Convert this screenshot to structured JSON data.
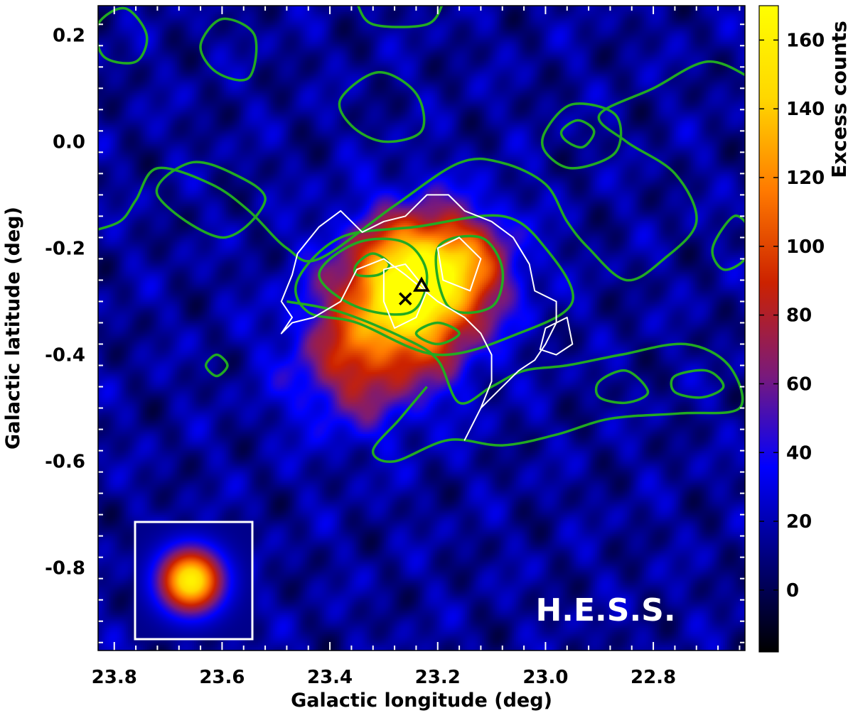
{
  "chart_data": {
    "type": "heatmap",
    "title": "",
    "watermark": "H.E.S.S.",
    "xlabel": "Galactic longitude (deg)",
    "ylabel": "Galactic latitude (deg)",
    "xlim": [
      23.83,
      22.63
    ],
    "ylim": [
      -0.955,
      0.255
    ],
    "x_ticks": [
      {
        "value": 23.8,
        "label": "23.8"
      },
      {
        "value": 23.6,
        "label": "23.6"
      },
      {
        "value": 23.4,
        "label": "23.4"
      },
      {
        "value": 23.2,
        "label": "23.2"
      },
      {
        "value": 23.0,
        "label": "23.0"
      },
      {
        "value": 22.8,
        "label": "22.8"
      }
    ],
    "y_ticks": [
      {
        "value": 0.2,
        "label": "0.2"
      },
      {
        "value": 0.0,
        "label": "0.0"
      },
      {
        "value": -0.2,
        "label": "-0.2"
      },
      {
        "value": -0.4,
        "label": "-0.4"
      },
      {
        "value": -0.6,
        "label": "-0.6"
      },
      {
        "value": -0.8,
        "label": "-0.8"
      }
    ],
    "colorbar": {
      "label": "Excess counts",
      "range": [
        -18,
        170
      ],
      "ticks": [
        {
          "value": 0,
          "label": "0"
        },
        {
          "value": 20,
          "label": "20"
        },
        {
          "value": 40,
          "label": "40"
        },
        {
          "value": 60,
          "label": "60"
        },
        {
          "value": 80,
          "label": "80"
        },
        {
          "value": 100,
          "label": "100"
        },
        {
          "value": 120,
          "label": "120"
        },
        {
          "value": 140,
          "label": "140"
        },
        {
          "value": 160,
          "label": "160"
        }
      ],
      "colormap": [
        "#000000",
        "#00007a",
        "#0000ff",
        "#7a1a7a",
        "#cc2200",
        "#ff7a00",
        "#ffd700",
        "#ffff00"
      ]
    },
    "excess_sources": [
      {
        "l": 23.24,
        "b": -0.26,
        "sigma": 0.085,
        "amplitude": 150
      },
      {
        "l": 23.31,
        "b": -0.37,
        "sigma": 0.1,
        "amplitude": 60
      },
      {
        "l": 23.14,
        "b": -0.22,
        "sigma": 0.07,
        "amplitude": 40
      },
      {
        "l": 23.38,
        "b": -0.44,
        "sigma": 0.07,
        "amplitude": 25
      }
    ],
    "markers": [
      {
        "type": "cross",
        "l": 23.26,
        "b": -0.295,
        "color": "#000000"
      },
      {
        "type": "triangle",
        "l": 23.23,
        "b": -0.27,
        "color": "#000000"
      }
    ],
    "contours": {
      "green": {
        "color": "#22aa22",
        "paths": [
          [
            [
              23.35,
              -0.23
            ],
            [
              23.32,
              -0.21
            ],
            [
              23.29,
              -0.23
            ],
            [
              23.31,
              -0.25
            ],
            [
              23.35,
              -0.25
            ]
          ],
          [
            [
              23.42,
              -0.25
            ],
            [
              23.35,
              -0.19
            ],
            [
              23.26,
              -0.19
            ],
            [
              23.22,
              -0.25
            ],
            [
              23.25,
              -0.32
            ],
            [
              23.35,
              -0.31
            ]
          ],
          [
            [
              23.2,
              -0.2
            ],
            [
              23.12,
              -0.18
            ],
            [
              23.08,
              -0.24
            ],
            [
              23.1,
              -0.31
            ],
            [
              23.18,
              -0.31
            ]
          ],
          [
            [
              23.24,
              -0.36
            ],
            [
              23.2,
              -0.34
            ],
            [
              23.16,
              -0.36
            ],
            [
              23.2,
              -0.38
            ]
          ],
          [
            [
              23.46,
              -0.26
            ],
            [
              23.38,
              -0.18
            ],
            [
              23.24,
              -0.16
            ],
            [
              23.08,
              -0.14
            ],
            [
              23.0,
              -0.2
            ],
            [
              22.95,
              -0.3
            ],
            [
              23.05,
              -0.36
            ],
            [
              23.2,
              -0.4
            ],
            [
              23.35,
              -0.34
            ],
            [
              23.44,
              -0.32
            ]
          ],
          [
            [
              23.48,
              -0.3
            ],
            [
              23.38,
              -0.32
            ],
            [
              23.26,
              -0.37
            ],
            [
              23.2,
              -0.41
            ],
            [
              23.16,
              -0.49
            ],
            [
              23.1,
              -0.46
            ],
            [
              23.04,
              -0.43
            ],
            [
              22.96,
              -0.42
            ],
            [
              22.86,
              -0.4
            ],
            [
              22.74,
              -0.38
            ],
            [
              22.66,
              -0.42
            ],
            [
              22.64,
              -0.5
            ],
            [
              22.75,
              -0.51
            ],
            [
              22.88,
              -0.52
            ],
            [
              22.98,
              -0.55
            ],
            [
              23.08,
              -0.57
            ],
            [
              23.18,
              -0.56
            ],
            [
              23.28,
              -0.6
            ],
            [
              23.32,
              -0.58
            ],
            [
              23.27,
              -0.52
            ],
            [
              23.22,
              -0.46
            ]
          ],
          [
            [
              22.9,
              -0.45
            ],
            [
              22.85,
              -0.43
            ],
            [
              22.81,
              -0.47
            ],
            [
              22.85,
              -0.49
            ],
            [
              22.9,
              -0.48
            ]
          ],
          [
            [
              22.76,
              -0.44
            ],
            [
              22.7,
              -0.43
            ],
            [
              22.67,
              -0.46
            ],
            [
              22.71,
              -0.48
            ],
            [
              22.76,
              -0.47
            ]
          ],
          [
            [
              23.85,
              -0.17
            ],
            [
              23.79,
              -0.15
            ],
            [
              23.76,
              -0.11
            ],
            [
              23.72,
              -0.05
            ],
            [
              23.62,
              -0.08
            ],
            [
              23.55,
              -0.13
            ],
            [
              23.48,
              -0.2
            ],
            [
              23.42,
              -0.22
            ],
            [
              23.28,
              -0.12
            ],
            [
              23.16,
              -0.04
            ],
            [
              23.08,
              -0.04
            ],
            [
              23.0,
              -0.08
            ],
            [
              22.96,
              -0.15
            ],
            [
              22.92,
              -0.2
            ],
            [
              22.85,
              -0.26
            ],
            [
              22.78,
              -0.22
            ],
            [
              22.72,
              -0.15
            ],
            [
              22.76,
              -0.06
            ],
            [
              22.85,
              0.0
            ],
            [
              22.9,
              0.05
            ],
            [
              22.8,
              0.1
            ],
            [
              22.7,
              0.15
            ],
            [
              22.62,
              0.12
            ]
          ],
          [
            [
              23.6,
              -0.18
            ],
            [
              23.72,
              -0.1
            ],
            [
              23.66,
              -0.04
            ],
            [
              23.58,
              -0.06
            ],
            [
              23.52,
              -0.11
            ]
          ],
          [
            [
              23.0,
              0.02
            ],
            [
              22.95,
              0.07
            ],
            [
              22.87,
              0.05
            ],
            [
              22.87,
              -0.02
            ],
            [
              22.95,
              -0.05
            ],
            [
              23.0,
              -0.02
            ]
          ],
          [
            [
              22.97,
              0.02
            ],
            [
              22.94,
              0.04
            ],
            [
              22.91,
              0.02
            ],
            [
              22.93,
              -0.01
            ],
            [
              22.96,
              0.0
            ]
          ],
          [
            [
              23.38,
              0.08
            ],
            [
              23.31,
              0.13
            ],
            [
              23.24,
              0.09
            ],
            [
              23.23,
              0.02
            ],
            [
              23.3,
              0.0
            ],
            [
              23.36,
              0.03
            ]
          ],
          [
            [
              23.64,
              0.18
            ],
            [
              23.6,
              0.23
            ],
            [
              23.54,
              0.2
            ],
            [
              23.55,
              0.12
            ],
            [
              23.61,
              0.13
            ]
          ],
          [
            [
              23.83,
              0.22
            ],
            [
              23.78,
              0.25
            ],
            [
              23.74,
              0.2
            ],
            [
              23.76,
              0.15
            ],
            [
              23.82,
              0.16
            ]
          ],
          [
            [
              23.63,
              -0.42
            ],
            [
              23.61,
              -0.4
            ],
            [
              23.59,
              -0.42
            ],
            [
              23.61,
              -0.44
            ]
          ],
          [
            [
              22.65,
              -0.14
            ],
            [
              22.62,
              -0.17
            ],
            [
              22.63,
              -0.22
            ],
            [
              22.67,
              -0.24
            ],
            [
              22.69,
              -0.2
            ]
          ],
          [
            [
              23.35,
              0.26
            ],
            [
              23.32,
              0.22
            ],
            [
              23.22,
              0.22
            ],
            [
              23.19,
              0.26
            ]
          ]
        ]
      },
      "white": {
        "color": "#ffffff",
        "paths": [
          [
            [
              23.49,
              -0.36
            ],
            [
              23.47,
              -0.33
            ],
            [
              23.49,
              -0.3
            ],
            [
              23.47,
              -0.25
            ],
            [
              23.46,
              -0.21
            ],
            [
              23.42,
              -0.16
            ],
            [
              23.38,
              -0.13
            ],
            [
              23.34,
              -0.17
            ],
            [
              23.3,
              -0.15
            ],
            [
              23.26,
              -0.14
            ],
            [
              23.22,
              -0.1
            ],
            [
              23.18,
              -0.1
            ],
            [
              23.15,
              -0.13
            ],
            [
              23.1,
              -0.15
            ],
            [
              23.06,
              -0.18
            ],
            [
              23.03,
              -0.23
            ],
            [
              23.02,
              -0.28
            ],
            [
              22.98,
              -0.3
            ],
            [
              22.98,
              -0.34
            ],
            [
              23.0,
              -0.38
            ],
            [
              23.02,
              -0.41
            ],
            [
              23.05,
              -0.43
            ],
            [
              23.08,
              -0.46
            ],
            [
              23.12,
              -0.5
            ],
            [
              23.14,
              -0.54
            ],
            [
              23.15,
              -0.56
            ],
            [
              23.12,
              -0.5
            ],
            [
              23.1,
              -0.45
            ],
            [
              23.1,
              -0.4
            ],
            [
              23.12,
              -0.36
            ],
            [
              23.15,
              -0.33
            ],
            [
              23.2,
              -0.3
            ],
            [
              23.26,
              -0.25
            ],
            [
              23.3,
              -0.22
            ],
            [
              23.35,
              -0.24
            ],
            [
              23.38,
              -0.3
            ],
            [
              23.43,
              -0.33
            ],
            [
              23.47,
              -0.34
            ]
          ],
          [
            [
              23.3,
              -0.3
            ],
            [
              23.28,
              -0.35
            ],
            [
              23.24,
              -0.33
            ],
            [
              23.22,
              -0.28
            ],
            [
              23.26,
              -0.23
            ],
            [
              23.3,
              -0.24
            ]
          ],
          [
            [
              23.2,
              -0.2
            ],
            [
              23.16,
              -0.18
            ],
            [
              23.12,
              -0.22
            ],
            [
              23.14,
              -0.28
            ],
            [
              23.19,
              -0.26
            ]
          ],
          [
            [
              23.0,
              -0.35
            ],
            [
              22.96,
              -0.33
            ],
            [
              22.95,
              -0.38
            ],
            [
              22.98,
              -0.4
            ],
            [
              23.01,
              -0.39
            ]
          ]
        ]
      }
    },
    "psf_inset": {
      "sigma": 0.04
    }
  }
}
